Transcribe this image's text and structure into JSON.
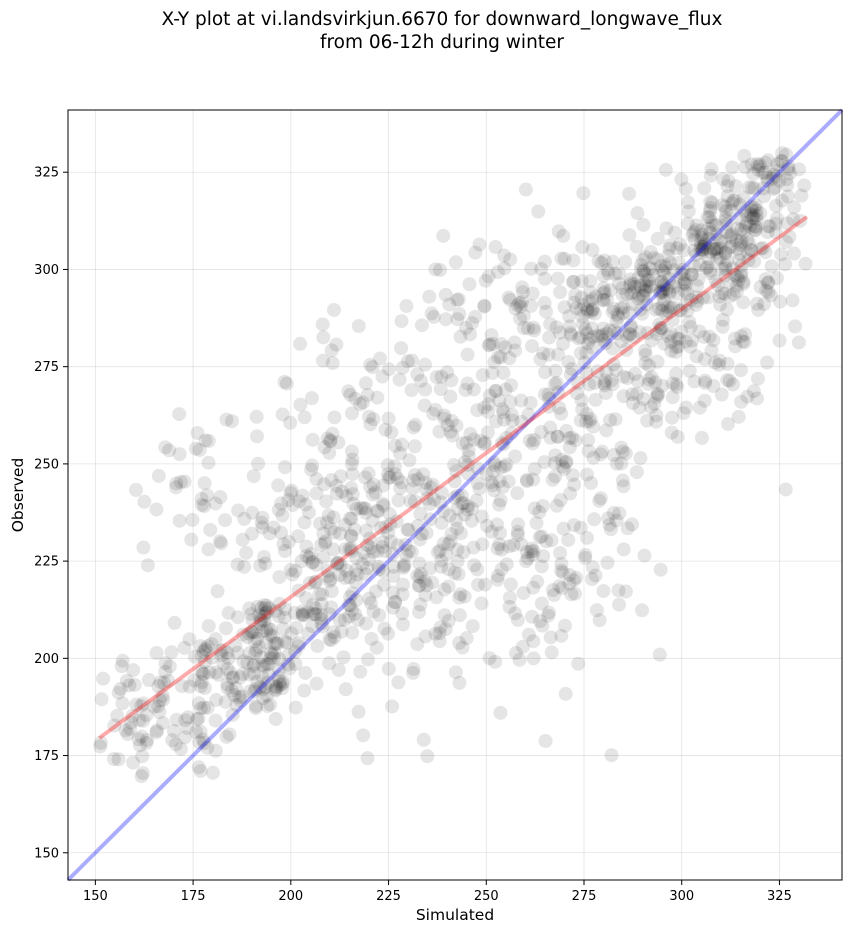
{
  "chart_data": {
    "type": "scatter",
    "title_lines": [
      "X-Y plot at vi.landsvirkjun.6670 for downward_longwave_flux",
      "from 06-12h during winter"
    ],
    "xlabel": "Simulated",
    "ylabel": "Observed",
    "xlim": [
      143,
      341
    ],
    "ylim": [
      143,
      341
    ],
    "xticks": [
      150,
      175,
      200,
      225,
      250,
      275,
      300,
      325
    ],
    "yticks": [
      150,
      175,
      200,
      225,
      250,
      275,
      300,
      325
    ],
    "grid": true,
    "point_color": "#000000",
    "point_opacity": 0.1,
    "lines": [
      {
        "role": "one-to-one",
        "color": "#0000ff",
        "points": [
          [
            143,
            143
          ],
          [
            341,
            341
          ]
        ]
      },
      {
        "role": "regression fit",
        "color": "#ff0000",
        "points": [
          [
            151,
            179.5
          ],
          [
            332,
            313.5
          ]
        ]
      }
    ],
    "clusters": [
      {
        "x": 160,
        "y": 185,
        "sx": 6,
        "sy": 9,
        "n": 45
      },
      {
        "x": 175,
        "y": 188,
        "sx": 7,
        "sy": 10,
        "n": 55
      },
      {
        "x": 172,
        "y": 245,
        "sx": 8,
        "sy": 12,
        "n": 30
      },
      {
        "x": 190,
        "y": 200,
        "sx": 8,
        "sy": 9,
        "n": 90
      },
      {
        "x": 193,
        "y": 193,
        "sx": 3,
        "sy": 3,
        "n": 25
      },
      {
        "x": 193,
        "y": 207,
        "sx": 3,
        "sy": 3,
        "n": 20
      },
      {
        "x": 200,
        "y": 235,
        "sx": 10,
        "sy": 15,
        "n": 75
      },
      {
        "x": 210,
        "y": 215,
        "sx": 8,
        "sy": 10,
        "n": 90
      },
      {
        "x": 215,
        "y": 260,
        "sx": 10,
        "sy": 14,
        "n": 45
      },
      {
        "x": 225,
        "y": 233,
        "sx": 9,
        "sy": 13,
        "n": 90
      },
      {
        "x": 235,
        "y": 270,
        "sx": 10,
        "sy": 15,
        "n": 55
      },
      {
        "x": 240,
        "y": 225,
        "sx": 10,
        "sy": 13,
        "n": 90
      },
      {
        "x": 250,
        "y": 255,
        "sx": 10,
        "sy": 16,
        "n": 80
      },
      {
        "x": 255,
        "y": 290,
        "sx": 10,
        "sy": 10,
        "n": 30
      },
      {
        "x": 262,
        "y": 225,
        "sx": 9,
        "sy": 13,
        "n": 55
      },
      {
        "x": 270,
        "y": 268,
        "sx": 10,
        "sy": 15,
        "n": 90
      },
      {
        "x": 278,
        "y": 290,
        "sx": 7,
        "sy": 9,
        "n": 70
      },
      {
        "x": 280,
        "y": 235,
        "sx": 9,
        "sy": 14,
        "n": 45
      },
      {
        "x": 290,
        "y": 280,
        "sx": 9,
        "sy": 14,
        "n": 90
      },
      {
        "x": 292,
        "y": 295,
        "sx": 6,
        "sy": 5,
        "n": 45
      },
      {
        "x": 303,
        "y": 300,
        "sx": 7,
        "sy": 9,
        "n": 95
      },
      {
        "x": 307,
        "y": 305,
        "sx": 3,
        "sy": 3,
        "n": 30
      },
      {
        "x": 315,
        "y": 313,
        "sx": 6,
        "sy": 7,
        "n": 90
      },
      {
        "x": 310,
        "y": 278,
        "sx": 8,
        "sy": 12,
        "n": 50
      },
      {
        "x": 325,
        "y": 325,
        "sx": 4,
        "sy": 4,
        "n": 40
      },
      {
        "x": 320,
        "y": 298,
        "sx": 6,
        "sy": 11,
        "n": 35
      },
      {
        "x": 245,
        "y": 200,
        "sx": 25,
        "sy": 15,
        "n": 40
      },
      {
        "x": 270,
        "y": 300,
        "sx": 30,
        "sy": 15,
        "n": 25
      }
    ]
  }
}
